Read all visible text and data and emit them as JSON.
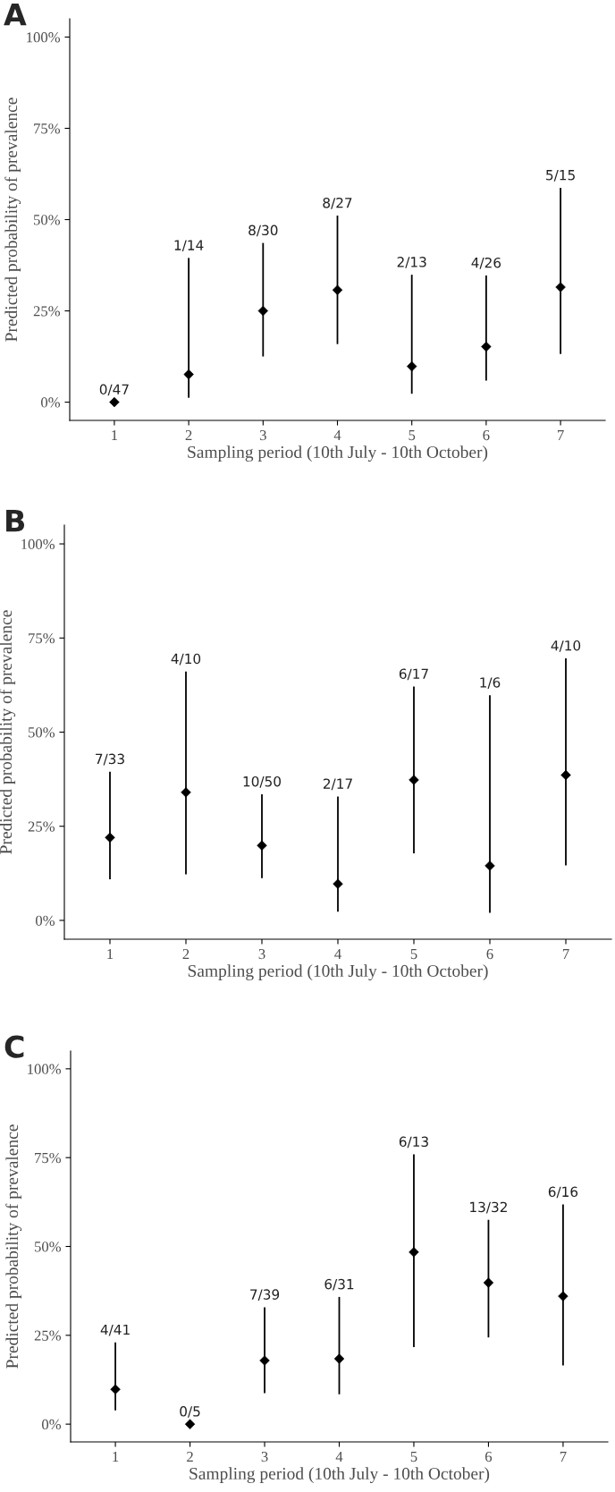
{
  "chart_data": [
    {
      "type": "scatter",
      "title": "A",
      "xlabel": "Sampling period (10th July - 10th October)",
      "ylabel": "Predicted probability of prevalence",
      "categories": [
        "1",
        "2",
        "3",
        "4",
        "5",
        "6",
        "7"
      ],
      "values": [
        0,
        7.6,
        25.0,
        30.7,
        9.8,
        15.2,
        31.5
      ],
      "errors": [
        null,
        [
          1.2,
          39.5
        ],
        [
          12.5,
          43.6
        ],
        [
          15.9,
          51.1
        ],
        [
          2.3,
          34.9
        ],
        [
          5.9,
          34.7
        ],
        [
          13.2,
          58.7
        ]
      ],
      "color": "#000000",
      "marker": "diamond",
      "grid": false,
      "ylim": [
        -5,
        105
      ],
      "yticks": [
        {
          "value": 0,
          "label": "0%"
        },
        {
          "value": 25,
          "label": "25%"
        },
        {
          "value": 50,
          "label": "50%"
        },
        {
          "value": 75,
          "label": "75%"
        },
        {
          "value": 100,
          "label": "100%"
        }
      ],
      "annotations": [
        {
          "text": "0/47",
          "x": "1",
          "y": 0
        },
        {
          "text": "1/14",
          "x": "2",
          "y": 39.5
        },
        {
          "text": "8/30",
          "x": "3",
          "y": 43.6
        },
        {
          "text": "8/27",
          "x": "4",
          "y": 51.1
        },
        {
          "text": "2/13",
          "x": "5",
          "y": 34.9
        },
        {
          "text": "4/26",
          "x": "6",
          "y": 34.7
        },
        {
          "text": "5/15",
          "x": "7",
          "y": 58.7
        }
      ]
    },
    {
      "type": "scatter",
      "title": "B",
      "xlabel": "Sampling period (10th July - 10th October)",
      "ylabel": "Predicted probability of prevalence",
      "categories": [
        "1",
        "2",
        "3",
        "4",
        "5",
        "6",
        "7"
      ],
      "values": [
        22.0,
        34.0,
        19.9,
        9.7,
        37.3,
        14.5,
        38.6
      ],
      "errors": [
        [
          10.9,
          39.5
        ],
        [
          12.2,
          66.1
        ],
        [
          11.2,
          33.5
        ],
        [
          2.3,
          32.9
        ],
        [
          17.8,
          62.1
        ],
        [
          2.0,
          59.8
        ],
        [
          14.6,
          69.6
        ]
      ],
      "color": "#000000",
      "marker": "diamond",
      "grid": false,
      "ylim": [
        -5,
        105
      ],
      "yticks": [
        {
          "value": 0,
          "label": "0%"
        },
        {
          "value": 25,
          "label": "25%"
        },
        {
          "value": 50,
          "label": "50%"
        },
        {
          "value": 75,
          "label": "75%"
        },
        {
          "value": 100,
          "label": "100%"
        }
      ],
      "annotations": [
        {
          "text": "7/33",
          "x": "1",
          "y": 39.5
        },
        {
          "text": "4/10",
          "x": "2",
          "y": 66.1
        },
        {
          "text": "10/50",
          "x": "3",
          "y": 33.5
        },
        {
          "text": "2/17",
          "x": "4",
          "y": 32.9
        },
        {
          "text": "6/17",
          "x": "5",
          "y": 62.1
        },
        {
          "text": "1/6",
          "x": "6",
          "y": 59.8
        },
        {
          "text": "4/10",
          "x": "7",
          "y": 69.6
        }
      ]
    },
    {
      "type": "scatter",
      "title": "C",
      "xlabel": "Sampling period (10th July - 10th October)",
      "ylabel": "Predicted probability of prevalence",
      "categories": [
        "1",
        "2",
        "3",
        "4",
        "5",
        "6",
        "7"
      ],
      "values": [
        9.8,
        0,
        17.9,
        18.4,
        48.4,
        39.8,
        36.0
      ],
      "errors": [
        [
          3.9,
          23.0
        ],
        null,
        [
          8.7,
          32.9
        ],
        [
          8.4,
          35.8
        ],
        [
          21.7,
          75.9
        ],
        [
          24.4,
          57.5
        ],
        [
          16.5,
          61.8
        ]
      ],
      "color": "#000000",
      "marker": "diamond",
      "grid": false,
      "ylim": [
        -5,
        105
      ],
      "yticks": [
        {
          "value": 0,
          "label": "0%"
        },
        {
          "value": 25,
          "label": "25%"
        },
        {
          "value": 50,
          "label": "50%"
        },
        {
          "value": 75,
          "label": "75%"
        },
        {
          "value": 100,
          "label": "100%"
        }
      ],
      "annotations": [
        {
          "text": "4/41",
          "x": "1",
          "y": 23.0
        },
        {
          "text": "0/5",
          "x": "2",
          "y": 0
        },
        {
          "text": "7/39",
          "x": "3",
          "y": 32.9
        },
        {
          "text": "6/31",
          "x": "4",
          "y": 35.8
        },
        {
          "text": "6/13",
          "x": "5",
          "y": 75.9
        },
        {
          "text": "13/32",
          "x": "6",
          "y": 57.5
        },
        {
          "text": "6/16",
          "x": "7",
          "y": 61.8
        }
      ]
    }
  ]
}
